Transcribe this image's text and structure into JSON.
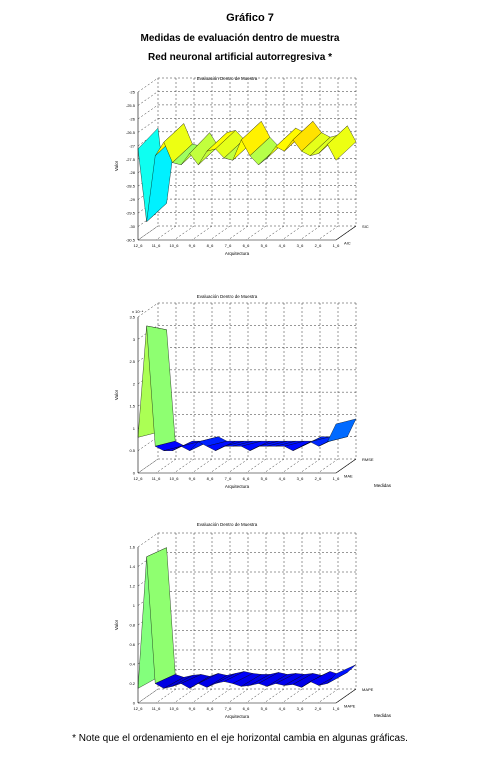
{
  "figure": {
    "title": "Gráfico 7",
    "subtitle": "Medidas de evaluación dentro de muestra",
    "subtitle2": "Red neuronal artificial autorregresiva *",
    "footnote": "* Note que el ordenamiento en el eje horizontal cambia en algunas gráficas."
  },
  "colors": {
    "grid": "#333333",
    "surface_edge": "#000000"
  },
  "chart_data": [
    {
      "type": "surface3d",
      "title": "Evaluación Dentro de Muestra",
      "xlabel": "Arquitectura",
      "ylabel": "Valor",
      "zlabel": "",
      "xticks": [
        "12_6",
        "11_6",
        "10_6",
        "9_6",
        "8_6",
        "7_6",
        "6_6",
        "5_6",
        "4_6",
        "3_6",
        "2_6",
        "1_6"
      ],
      "yticks": [
        "-25",
        "-25.5",
        "-26",
        "-26.5",
        "-27",
        "-27.5",
        "-28",
        "-28.5",
        "-29",
        "-29.5",
        "-30",
        "-30.5"
      ],
      "depth_labels": [
        "SIC",
        "AIC"
      ],
      "ylim": [
        -31,
        -24.5
      ],
      "series": [
        {
          "name": "SIC",
          "values": [
            -27.0,
            -30.2,
            -27.3,
            -26.7,
            -27.6,
            -27.7,
            -27.2,
            -27.7,
            -27.1,
            -27.0,
            -27.4,
            -27.5,
            -26.6,
            -27.3,
            -27.7,
            -27.4,
            -26.9,
            -27.1,
            -26.6,
            -27.1,
            -27.3,
            -27.2,
            -26.8,
            -27.5
          ]
        },
        {
          "name": "AIC",
          "values": [
            -26.7,
            -30.0,
            -27.1,
            -26.5,
            -27.4,
            -27.5,
            -26.9,
            -27.5,
            -26.9,
            -26.8,
            -27.2,
            -27.3,
            -26.4,
            -27.1,
            -27.5,
            -27.2,
            -26.7,
            -26.9,
            -26.4,
            -26.9,
            -27.1,
            -27.0,
            -26.6,
            -27.3
          ]
        }
      ]
    },
    {
      "type": "surface3d",
      "title": "Evaluación Dentro de Muestra",
      "xlabel": "Arquitectura",
      "ylabel": "Valor",
      "zlabel": "Medidas",
      "yscale_label": "x 10⁻⁴",
      "xticks": [
        "12_6",
        "11_6",
        "10_6",
        "9_6",
        "8_6",
        "7_6",
        "6_6",
        "5_6",
        "4_6",
        "3_6",
        "2_6",
        "1_6"
      ],
      "yticks": [
        "0",
        "0.5",
        "1",
        "1.5",
        "2",
        "2.5",
        "3",
        "3.5"
      ],
      "depth_labels": [
        "RMSE",
        "MAE"
      ],
      "ylim": [
        0,
        3.5
      ],
      "series": [
        {
          "name": "RMSE",
          "values": [
            0.8,
            3.3,
            0.6,
            0.5,
            0.5,
            0.6,
            0.5,
            0.7,
            0.6,
            0.5,
            0.6,
            0.6,
            0.6,
            0.5,
            0.6,
            0.6,
            0.6,
            0.6,
            0.5,
            0.6,
            0.7,
            0.6,
            0.7,
            1.1
          ]
        },
        {
          "name": "MAE",
          "values": [
            0.6,
            2.9,
            0.4,
            0.3,
            0.4,
            0.4,
            0.4,
            0.5,
            0.4,
            0.4,
            0.4,
            0.4,
            0.4,
            0.4,
            0.4,
            0.4,
            0.4,
            0.4,
            0.4,
            0.5,
            0.5,
            0.5,
            0.5,
            0.9
          ]
        }
      ]
    },
    {
      "type": "surface3d",
      "title": "Evaluación Dentro de Muestra",
      "xlabel": "Arquitectura",
      "ylabel": "Valor",
      "zlabel": "Medidas",
      "xticks": [
        "12_6",
        "11_6",
        "10_6",
        "9_6",
        "8_6",
        "7_6",
        "6_6",
        "5_6",
        "4_6",
        "3_6",
        "2_6",
        "1_6"
      ],
      "yticks": [
        "0",
        "0.2",
        "0.4",
        "0.6",
        "0.8",
        "1",
        "1.2",
        "1.4",
        "1.6"
      ],
      "depth_labels": [
        "MAPE",
        "MAPE"
      ],
      "ylim": [
        0,
        1.6
      ],
      "series": [
        {
          "name": "MAPE",
          "values": [
            0.15,
            1.5,
            0.2,
            0.15,
            0.17,
            0.2,
            0.15,
            0.2,
            0.16,
            0.2,
            0.22,
            0.2,
            0.17,
            0.18,
            0.2,
            0.17,
            0.2,
            0.18,
            0.19,
            0.16,
            0.22,
            0.18,
            0.2,
            0.3
          ]
        },
        {
          "name": "MAPE",
          "values": [
            0.12,
            1.45,
            0.15,
            0.12,
            0.14,
            0.15,
            0.13,
            0.16,
            0.14,
            0.16,
            0.18,
            0.16,
            0.15,
            0.15,
            0.17,
            0.15,
            0.16,
            0.15,
            0.16,
            0.14,
            0.18,
            0.15,
            0.17,
            0.25
          ]
        }
      ]
    }
  ]
}
